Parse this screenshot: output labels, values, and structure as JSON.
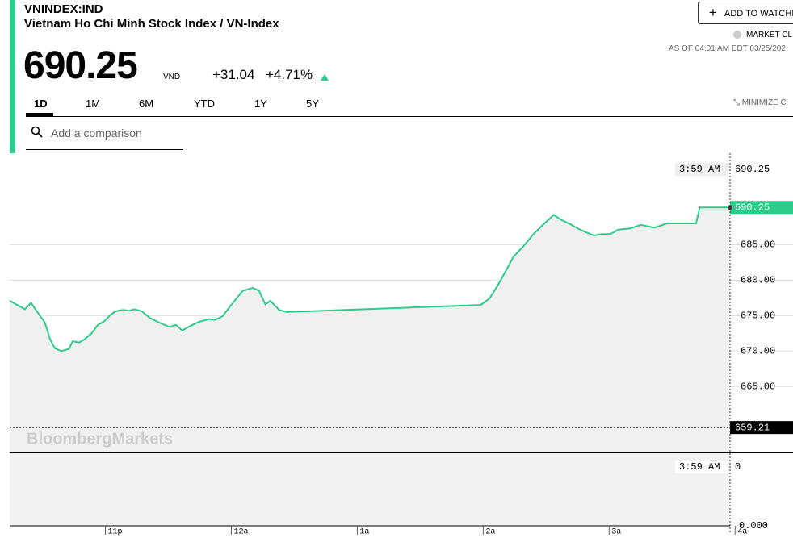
{
  "header": {
    "ticker": "VNINDEX:IND",
    "name": "Vietnam Ho Chi Minh Stock Index / VN-Index",
    "price": "690.25",
    "currency": "VND",
    "change": "+31.04",
    "change_pct": "+4.71%",
    "watchlist": "ADD TO WATCHLI",
    "market_status": "MARKET CL",
    "as_of": "AS OF 04:01 AM EDT 03/25/202",
    "minimize": "MINIMIZE C"
  },
  "tabs": [
    "1D",
    "1M",
    "6M",
    "YTD",
    "1Y",
    "5Y"
  ],
  "search_placeholder": "Add a comparison",
  "chart_data": {
    "type": "line",
    "color": "#2ecc8a",
    "watermark": "BloombergMarkets",
    "x": [
      22.24,
      22.3,
      22.36,
      22.41,
      22.46,
      22.52,
      22.56,
      22.6,
      22.65,
      22.71,
      22.74,
      22.79,
      22.83,
      22.89,
      22.94,
      22.99,
      23.04,
      23.08,
      23.14,
      23.19,
      23.23,
      23.29,
      23.35,
      23.43,
      23.51,
      23.56,
      23.61,
      23.66,
      23.74,
      23.82,
      23.87,
      23.93,
      23.99,
      24.09,
      24.17,
      24.22,
      24.27,
      24.31,
      24.38,
      24.44,
      25.98,
      26.05,
      26.11,
      26.17,
      26.24,
      26.32,
      26.4,
      26.48,
      26.56,
      26.62,
      26.69,
      26.75,
      26.81,
      26.88,
      26.94,
      27.01,
      27.07,
      27.17,
      27.25,
      27.36,
      27.46,
      27.69,
      27.72,
      27.96
    ],
    "values": [
      677.1,
      676.5,
      675.9,
      676.8,
      675.5,
      674.0,
      671.7,
      670.4,
      670.0,
      670.3,
      671.4,
      671.2,
      671.6,
      672.5,
      673.7,
      674.2,
      675.1,
      675.6,
      675.8,
      675.7,
      675.9,
      675.6,
      674.7,
      674.0,
      673.4,
      673.7,
      672.9,
      673.4,
      674.1,
      674.5,
      674.4,
      674.9,
      676.3,
      678.5,
      678.9,
      678.5,
      676.6,
      677.1,
      675.8,
      675.5,
      676.5,
      677.4,
      679.1,
      681.0,
      683.3,
      684.8,
      686.5,
      687.9,
      689.2,
      688.5,
      687.9,
      687.3,
      686.8,
      686.3,
      686.5,
      686.5,
      687.1,
      687.3,
      687.8,
      687.4,
      688.0,
      688.0,
      690.25,
      690.25
    ],
    "xlim": [
      22.24,
      27.96
    ],
    "xticks": [
      {
        "value": 23,
        "label": "11p"
      },
      {
        "value": 24,
        "label": "12a"
      },
      {
        "value": 25,
        "label": "1a"
      },
      {
        "value": 26,
        "label": "2a"
      },
      {
        "value": 27,
        "label": "3a"
      },
      {
        "value": 28,
        "label": "4a"
      }
    ],
    "ylim": [
      655.7,
      697.9
    ],
    "yticks": [
      {
        "value": 665,
        "label": "665.00"
      },
      {
        "value": 670,
        "label": "670.00"
      },
      {
        "value": 675,
        "label": "675.00"
      },
      {
        "value": 680,
        "label": "680.00"
      },
      {
        "value": 685,
        "label": "685.00"
      }
    ],
    "last_value": 690.25,
    "previous_close": 659.21,
    "crosshair_time": "3:59 AM",
    "crosshair_value": "690.25",
    "volume_time": "3:59 AM",
    "volume_value": 0,
    "volume_ticks": [
      {
        "value": 0,
        "label": "0.000"
      }
    ]
  }
}
